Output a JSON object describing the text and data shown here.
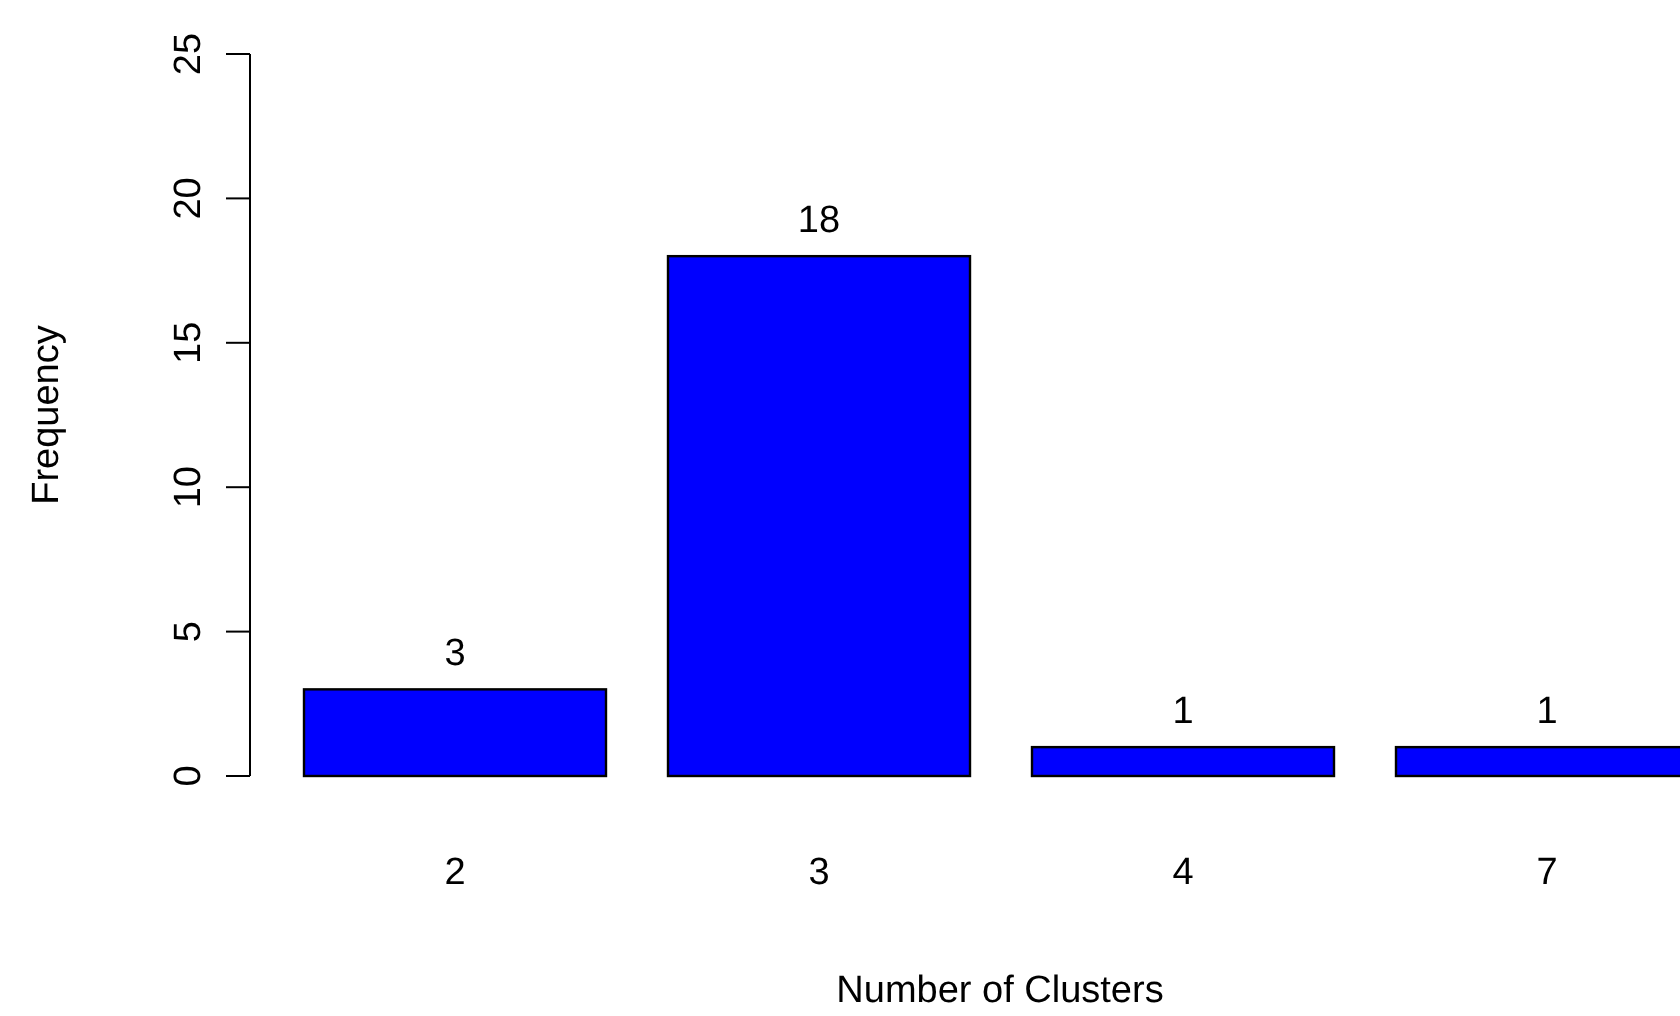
{
  "chart_data": {
    "type": "bar",
    "xlabel": "Number of Clusters",
    "ylabel": "Frequency",
    "categories": [
      "2",
      "3",
      "4",
      "7"
    ],
    "values": [
      3,
      18,
      1,
      1
    ],
    "color": "#0000ff",
    "ylim": [
      0,
      25
    ],
    "yticks": [
      0,
      5,
      10,
      15,
      20,
      25
    ],
    "data_labels": true,
    "grid": false
  }
}
